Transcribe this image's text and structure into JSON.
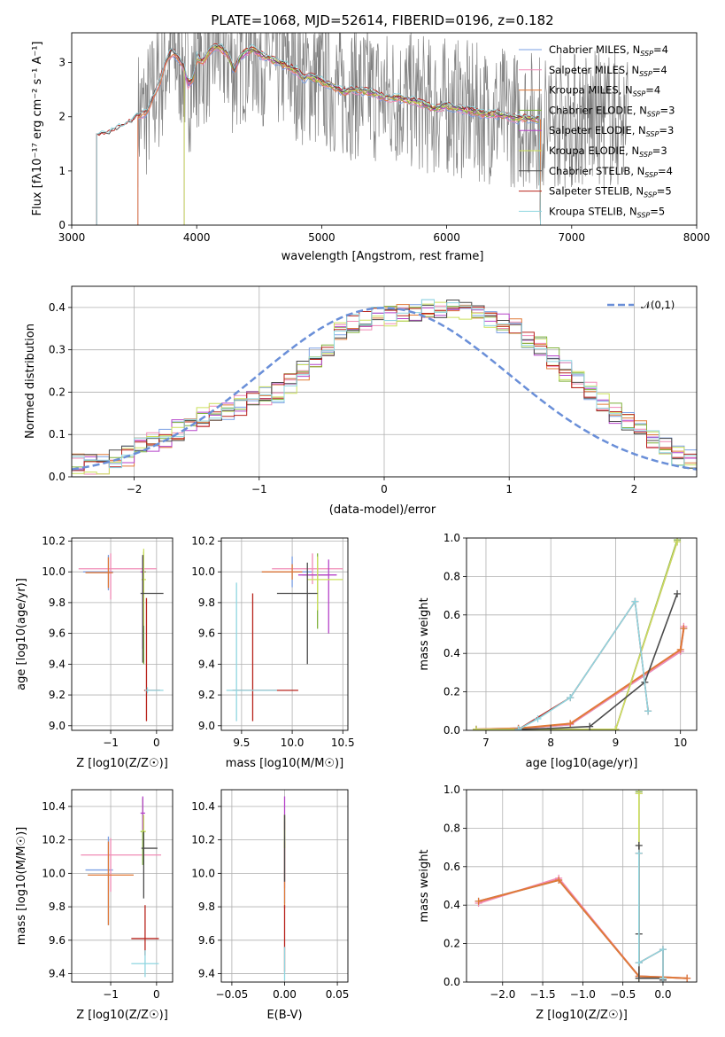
{
  "suptitle": "PLATE=1068, MJD=52614, FIBERID=0196, z=0.182",
  "colors": {
    "Chabrier MILES": "#7a9fe3",
    "Salpeter MILES": "#f08ab5",
    "Kroupa MILES": "#e07a38",
    "Chabrier ELODIE": "#7fb13a",
    "Salpeter ELODIE": "#b543c9",
    "Kroupa ELODIE": "#cbe05c",
    "Chabrier STELIB": "#4a4a4a",
    "Salpeter STELIB": "#b8241d",
    "Kroupa STELIB": "#8fd6e0",
    "data": "#808080",
    "normal": "#6a8fd8"
  },
  "chart_data": [
    {
      "type": "line",
      "panel": "spectrum",
      "xlabel": "wavelength [Angstrom, rest frame]",
      "ylabel": "Flux [f_λ10^-17 erg cm^-2 s^-1 A^-1]",
      "xlim": [
        3000,
        8000
      ],
      "ylim": [
        0,
        3.55
      ],
      "xticks": [
        "3000",
        "4000",
        "5000",
        "6000",
        "7000",
        "8000"
      ],
      "yticks": [
        "0",
        "1",
        "2",
        "3"
      ],
      "legend_position": "top-right",
      "legend": [
        "Chabrier MILES, N_SSP=4",
        "Salpeter MILES, N_SSP=4",
        "Kroupa MILES, N_SSP=4",
        "Chabrier ELODIE, N_SSP=3",
        "Salpeter ELODIE, N_SSP=3",
        "Kroupa ELODIE, N_SSP=3",
        "Chabrier STELIB, N_SSP=4",
        "Salpeter STELIB, N_SSP=5",
        "Kroupa STELIB, N_SSP=5"
      ],
      "model_continuum": {
        "x": [
          3280,
          3350,
          3450,
          3530,
          3600,
          3700,
          3750,
          3800,
          3850,
          3900,
          3930,
          3970,
          4000,
          4050,
          4100,
          4150,
          4200,
          4250,
          4300,
          4350,
          4400,
          4450,
          4500,
          4600,
          4700,
          4800,
          4861,
          4900,
          5000,
          5100,
          5175,
          5250,
          5400,
          5500,
          5600,
          5700,
          5800,
          5893,
          6000,
          6100,
          6200,
          6300,
          6400,
          6500,
          6563,
          6600,
          6700,
          6750
        ],
        "y": [
          1.65,
          1.75,
          1.85,
          2.0,
          2.1,
          2.6,
          3.0,
          3.2,
          3.1,
          2.9,
          2.6,
          2.7,
          3.1,
          3.0,
          3.2,
          3.3,
          3.25,
          3.15,
          2.85,
          3.1,
          3.2,
          3.25,
          3.15,
          3.05,
          2.95,
          2.85,
          2.7,
          2.75,
          2.65,
          2.55,
          2.45,
          2.5,
          2.45,
          2.35,
          2.35,
          2.3,
          2.25,
          2.15,
          2.2,
          2.15,
          2.1,
          2.05,
          2.05,
          2.0,
          1.95,
          1.98,
          1.95,
          1.95
        ]
      },
      "stelib_start_x": 3200,
      "data_range_x": [
        3530,
        7450
      ]
    },
    {
      "type": "line",
      "panel": "residual_distribution",
      "xlabel": "(data-model)/error",
      "ylabel": "Normed distribution",
      "xlim": [
        -2.5,
        2.5
      ],
      "ylim": [
        0,
        0.45
      ],
      "xticks": [
        "−2",
        "−1",
        "0",
        "1",
        "2"
      ],
      "yticks": [
        "0.0",
        "0.1",
        "0.2",
        "0.3",
        "0.4"
      ],
      "legend": [
        "𝒩(0,1)"
      ],
      "legend_position": "top-right",
      "bin_width": 0.1,
      "histogram_approx": [
        0.03,
        0.03,
        0.03,
        0.04,
        0.05,
        0.07,
        0.08,
        0.09,
        0.11,
        0.12,
        0.14,
        0.15,
        0.16,
        0.17,
        0.18,
        0.19,
        0.2,
        0.22,
        0.25,
        0.28,
        0.31,
        0.34,
        0.36,
        0.37,
        0.38,
        0.38,
        0.39,
        0.39,
        0.4,
        0.4,
        0.4,
        0.39,
        0.38,
        0.37,
        0.36,
        0.35,
        0.33,
        0.31,
        0.28,
        0.25,
        0.23,
        0.2,
        0.18,
        0.15,
        0.13,
        0.11,
        0.09,
        0.07,
        0.05,
        0.04
      ]
    },
    {
      "type": "scatter",
      "panel": "age_vs_Z",
      "xlabel": "Z [log10(Z/Z☉)]",
      "ylabel": "age  [log10(age/yr)]",
      "xlim": [
        -1.85,
        0.35
      ],
      "ylim": [
        8.97,
        10.22
      ],
      "xticks": [
        "−1",
        "0"
      ],
      "yticks": [
        "9.0",
        "9.2",
        "9.4",
        "9.6",
        "9.8",
        "10.0",
        "10.2"
      ],
      "points": [
        {
          "series": "Chabrier MILES",
          "x": -1.05,
          "y": 10.0,
          "xerr": [
            0.55,
            0.1
          ],
          "yerr": [
            0.12,
            0.11
          ]
        },
        {
          "series": "Salpeter MILES",
          "x": -1.0,
          "y": 10.02,
          "xerr": [
            0.7,
            1.0
          ],
          "yerr": [
            0.2,
            0.1
          ]
        },
        {
          "series": "Kroupa MILES",
          "x": -1.05,
          "y": 9.995,
          "xerr": [
            0.5,
            0.1
          ],
          "yerr": [
            0.1,
            0.1
          ]
        },
        {
          "series": "Chabrier ELODIE",
          "x": -0.28,
          "y": 10.0,
          "xerr": [
            0.05,
            0.05
          ],
          "yerr": [
            0.6,
            0.13
          ]
        },
        {
          "series": "Salpeter ELODIE",
          "x": -0.3,
          "y": 10.0,
          "xerr": [
            0.05,
            0.05
          ],
          "yerr": [
            0.5,
            0.1
          ]
        },
        {
          "series": "Kroupa ELODIE",
          "x": -0.28,
          "y": 9.95,
          "xerr": [
            0.05,
            0.05
          ],
          "yerr": [
            0.3,
            0.2
          ]
        },
        {
          "series": "Chabrier STELIB",
          "x": -0.3,
          "y": 9.86,
          "xerr": [
            0.05,
            0.45
          ],
          "yerr": [
            0.45,
            0.25
          ]
        },
        {
          "series": "Salpeter STELIB",
          "x": -0.22,
          "y": 9.23,
          "xerr": [
            0.05,
            0.3
          ],
          "yerr": [
            0.2,
            0.6
          ]
        },
        {
          "series": "Kroupa STELIB",
          "x": -0.2,
          "y": 9.23,
          "xerr": [
            0.05,
            0.35
          ],
          "yerr": [
            0.02,
            0.02
          ]
        }
      ]
    },
    {
      "type": "scatter",
      "panel": "age_vs_mass",
      "xlabel": "mass [log10(M/M☉)]",
      "ylabel": "",
      "xlim": [
        9.3,
        10.55
      ],
      "ylim": [
        8.97,
        10.22
      ],
      "xticks": [
        "9.5",
        "10.0",
        "10.5"
      ],
      "yticks": [
        "9.0",
        "9.2",
        "9.4",
        "9.6",
        "9.8",
        "10.0",
        "10.2"
      ],
      "points": [
        {
          "series": "Chabrier MILES",
          "x": 10.0,
          "y": 10.0,
          "xerr": [
            0.3,
            0.2
          ],
          "yerr": [
            0.1,
            0.1
          ]
        },
        {
          "series": "Salpeter MILES",
          "x": 10.2,
          "y": 10.02,
          "xerr": [
            0.4,
            0.3
          ],
          "yerr": [
            0.1,
            0.1
          ]
        },
        {
          "series": "Kroupa MILES",
          "x": 10.0,
          "y": 10.0,
          "xerr": [
            0.3,
            0.1
          ],
          "yerr": [
            0.05,
            0.05
          ]
        },
        {
          "series": "Chabrier ELODIE",
          "x": 10.25,
          "y": 9.98,
          "xerr": [
            0.15,
            0.1
          ],
          "yerr": [
            0.35,
            0.14
          ]
        },
        {
          "series": "Salpeter ELODIE",
          "x": 10.36,
          "y": 9.98,
          "xerr": [
            0.3,
            0.08
          ],
          "yerr": [
            0.38,
            0.1
          ]
        },
        {
          "series": "Kroupa ELODIE",
          "x": 10.25,
          "y": 9.95,
          "xerr": [
            0.1,
            0.25
          ],
          "yerr": [
            0.2,
            0.15
          ]
        },
        {
          "series": "Chabrier STELIB",
          "x": 10.15,
          "y": 9.86,
          "xerr": [
            0.3,
            0.1
          ],
          "yerr": [
            0.46,
            0.2
          ]
        },
        {
          "series": "Salpeter STELIB",
          "x": 9.61,
          "y": 9.23,
          "xerr": [
            0.2,
            0.45
          ],
          "yerr": [
            0.2,
            0.63
          ]
        },
        {
          "series": "Kroupa STELIB",
          "x": 9.45,
          "y": 9.23,
          "xerr": [
            0.1,
            0.4
          ],
          "yerr": [
            0.2,
            0.7
          ]
        }
      ]
    },
    {
      "type": "line",
      "panel": "mass_weight_vs_age",
      "xlabel": "age  [log10(age/yr)]",
      "ylabel": "mass weight",
      "xlim": [
        6.7,
        10.25
      ],
      "ylim": [
        0,
        1.0
      ],
      "xticks": [
        "7",
        "8",
        "9",
        "10"
      ],
      "yticks": [
        "0.0",
        "0.2",
        "0.4",
        "0.6",
        "0.8",
        "1.0"
      ],
      "series": [
        {
          "name": "Chabrier MILES",
          "x": [
            6.85,
            7.5,
            8.3,
            10.0,
            10.05
          ],
          "y": [
            0.005,
            0.01,
            0.03,
            0.41,
            0.53
          ]
        },
        {
          "name": "Salpeter MILES",
          "x": [
            6.85,
            7.5,
            8.3,
            10.0,
            10.05
          ],
          "y": [
            0.005,
            0.01,
            0.03,
            0.41,
            0.54
          ]
        },
        {
          "name": "Kroupa MILES",
          "x": [
            6.85,
            7.5,
            8.3,
            10.0,
            10.05
          ],
          "y": [
            0.005,
            0.01,
            0.035,
            0.42,
            0.53
          ]
        },
        {
          "name": "Chabrier ELODIE",
          "x": [
            6.85,
            9.0,
            9.95
          ],
          "y": [
            0.005,
            0.005,
            0.99
          ]
        },
        {
          "name": "Salpeter ELODIE",
          "x": [
            6.85,
            9.0,
            9.95
          ],
          "y": [
            0.005,
            0.005,
            0.98
          ]
        },
        {
          "name": "Kroupa ELODIE",
          "x": [
            6.85,
            9.0,
            9.95
          ],
          "y": [
            0.005,
            0.005,
            0.98
          ]
        },
        {
          "name": "Chabrier STELIB",
          "x": [
            7.5,
            8.0,
            8.6,
            9.45,
            9.95
          ],
          "y": [
            0.005,
            0.01,
            0.02,
            0.25,
            0.71
          ]
        },
        {
          "name": "Salpeter STELIB",
          "x": [
            7.5,
            8.3,
            9.3,
            9.5
          ],
          "y": [
            0.005,
            0.17,
            0.67,
            0.1
          ]
        },
        {
          "name": "Kroupa STELIB",
          "x": [
            7.5,
            7.8,
            8.3,
            9.3,
            9.5
          ],
          "y": [
            0.005,
            0.06,
            0.17,
            0.67,
            0.1
          ]
        }
      ]
    },
    {
      "type": "scatter",
      "panel": "mass_vs_Z",
      "xlabel": "Z [log10(Z/Z☉)]",
      "ylabel": "mass [log10(M/M☉)]",
      "xlim": [
        -1.85,
        0.35
      ],
      "ylim": [
        9.35,
        10.5
      ],
      "xticks": [
        "−1",
        "0"
      ],
      "yticks": [
        "9.4",
        "9.6",
        "9.8",
        "10.0",
        "10.2",
        "10.4"
      ],
      "points": [
        {
          "series": "Chabrier MILES",
          "x": -1.05,
          "y": 10.02,
          "xerr": [
            0.5,
            0.1
          ],
          "yerr": [
            0.33,
            0.2
          ]
        },
        {
          "series": "Salpeter MILES",
          "x": -1.0,
          "y": 10.11,
          "xerr": [
            0.65,
            1.1
          ],
          "yerr": [
            0.22,
            0.1
          ]
        },
        {
          "series": "Kroupa MILES",
          "x": -1.05,
          "y": 9.99,
          "xerr": [
            0.45,
            0.55
          ],
          "yerr": [
            0.3,
            0.2
          ]
        },
        {
          "series": "Chabrier ELODIE",
          "x": -0.3,
          "y": 10.25,
          "xerr": [
            0.05,
            0.05
          ],
          "yerr": [
            0.2,
            0.2
          ]
        },
        {
          "series": "Salpeter ELODIE",
          "x": -0.3,
          "y": 10.36,
          "xerr": [
            0.05,
            0.05
          ],
          "yerr": [
            0.1,
            0.1
          ]
        },
        {
          "series": "Kroupa ELODIE",
          "x": -0.28,
          "y": 10.25,
          "xerr": [
            0.05,
            0.05
          ],
          "yerr": [
            0.1,
            0.1
          ]
        },
        {
          "series": "Chabrier STELIB",
          "x": -0.28,
          "y": 10.15,
          "xerr": [
            0.05,
            0.3
          ],
          "yerr": [
            0.3,
            0.1
          ]
        },
        {
          "series": "Salpeter STELIB",
          "x": -0.25,
          "y": 9.61,
          "xerr": [
            0.3,
            0.3
          ],
          "yerr": [
            0.1,
            0.2
          ]
        },
        {
          "series": "Kroupa STELIB",
          "x": -0.25,
          "y": 9.46,
          "xerr": [
            0.3,
            0.3
          ],
          "yerr": [
            0.08,
            0.08
          ]
        }
      ]
    },
    {
      "type": "scatter",
      "panel": "mass_vs_ebv",
      "xlabel": "E(B-V)",
      "ylabel": "",
      "xlim": [
        -0.06,
        0.06
      ],
      "ylim": [
        9.35,
        10.5
      ],
      "xticks": [
        "−0.05",
        "0.00",
        "0.05"
      ],
      "yticks": [
        "9.4",
        "9.6",
        "9.8",
        "10.0",
        "10.2",
        "10.4"
      ],
      "points": [
        {
          "series": "Chabrier MILES",
          "x": 0.0,
          "y": 10.02,
          "yerr": [
            0.2,
            0.2
          ]
        },
        {
          "series": "Salpeter MILES",
          "x": 0.0,
          "y": 10.11,
          "yerr": [
            0.2,
            0.2
          ]
        },
        {
          "series": "Kroupa MILES",
          "x": 0.0,
          "y": 9.99,
          "yerr": [
            0.2,
            0.2
          ]
        },
        {
          "series": "Chabrier ELODIE",
          "x": 0.0,
          "y": 10.25,
          "yerr": [
            0.1,
            0.1
          ]
        },
        {
          "series": "Salpeter ELODIE",
          "x": 0.0,
          "y": 10.36,
          "yerr": [
            0.1,
            0.1
          ]
        },
        {
          "series": "Kroupa ELODIE",
          "x": 0.0,
          "y": 10.25,
          "yerr": [
            0.1,
            0.1
          ]
        },
        {
          "series": "Chabrier STELIB",
          "x": 0.0,
          "y": 10.15,
          "yerr": [
            0.2,
            0.2
          ]
        },
        {
          "series": "Salpeter STELIB",
          "x": 0.0,
          "y": 9.61,
          "yerr": [
            0.2,
            0.2
          ]
        },
        {
          "series": "Kroupa STELIB",
          "x": 0.0,
          "y": 9.46,
          "yerr": [
            0.1,
            0.1
          ]
        }
      ]
    },
    {
      "type": "line",
      "panel": "mass_weight_vs_Z",
      "xlabel": "Z [log10(Z/Z☉)]",
      "ylabel": "mass weight",
      "xlim": [
        -2.45,
        0.42
      ],
      "ylim": [
        0,
        1.0
      ],
      "xticks": [
        "−2.0",
        "−1.5",
        "−1.0",
        "−0.5",
        "0.0"
      ],
      "yticks": [
        "0.0",
        "0.2",
        "0.4",
        "0.6",
        "0.8",
        "1.0"
      ],
      "series": [
        {
          "name": "Chabrier MILES",
          "x": [
            -2.3,
            -1.3,
            -0.3,
            0.3
          ],
          "y": [
            0.42,
            0.53,
            0.03,
            0.02
          ]
        },
        {
          "name": "Salpeter MILES",
          "x": [
            -2.3,
            -1.3,
            -0.3,
            0.3
          ],
          "y": [
            0.41,
            0.54,
            0.03,
            0.02
          ]
        },
        {
          "name": "Kroupa MILES",
          "x": [
            -2.3,
            -1.3,
            -0.3,
            0.3
          ],
          "y": [
            0.42,
            0.53,
            0.03,
            0.02
          ]
        },
        {
          "name": "Chabrier ELODIE",
          "x": [
            -0.3,
            -0.3
          ],
          "y": [
            0.02,
            0.99
          ]
        },
        {
          "name": "Salpeter ELODIE",
          "x": [
            -0.3,
            -0.3
          ],
          "y": [
            0.02,
            0.98
          ]
        },
        {
          "name": "Kroupa ELODIE",
          "x": [
            -0.3,
            -0.3
          ],
          "y": [
            0.02,
            0.98
          ]
        },
        {
          "name": "Chabrier STELIB",
          "x": [
            -0.3,
            -0.3,
            -0.3,
            0.0,
            0.0
          ],
          "y": [
            0.71,
            0.25,
            0.02,
            0.02,
            0.01
          ]
        },
        {
          "name": "Salpeter STELIB",
          "x": [
            -0.3,
            -0.3,
            0.0,
            0.0
          ],
          "y": [
            0.67,
            0.1,
            0.17,
            0.02
          ]
        },
        {
          "name": "Kroupa STELIB",
          "x": [
            -0.3,
            -0.3,
            0.0,
            0.0
          ],
          "y": [
            0.67,
            0.1,
            0.17,
            0.02
          ]
        }
      ]
    }
  ]
}
